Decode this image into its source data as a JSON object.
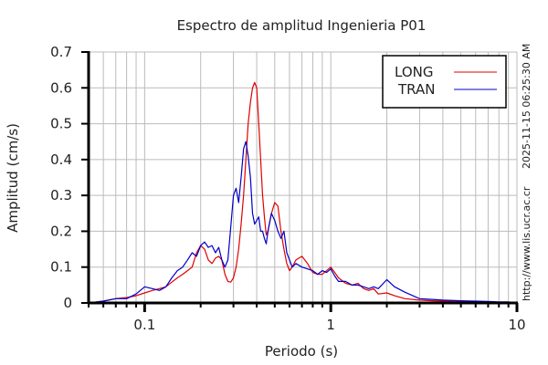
{
  "chart_data": {
    "type": "line",
    "title": "Espectro de amplitud Ingenieria P01",
    "xlabel": "Periodo (s)",
    "ylabel": "Amplitud (cm/s)",
    "xscale": "log",
    "xlim": [
      0.05,
      10
    ],
    "ylim": [
      0,
      0.7
    ],
    "xticks": [
      {
        "v": 0.1,
        "label": "0.1"
      },
      {
        "v": 1,
        "label": "1"
      },
      {
        "v": 10,
        "label": "10"
      }
    ],
    "yticks": [
      {
        "v": 0,
        "label": "0"
      },
      {
        "v": 0.1,
        "label": "0.1"
      },
      {
        "v": 0.2,
        "label": "0.2"
      },
      {
        "v": 0.3,
        "label": "0.3"
      },
      {
        "v": 0.4,
        "label": "0.4"
      },
      {
        "v": 0.5,
        "label": "0.5"
      },
      {
        "v": 0.6,
        "label": "0.6"
      },
      {
        "v": 0.7,
        "label": "0.7"
      }
    ],
    "grid": true,
    "legend_position": "upper right",
    "series": [
      {
        "name": "LONG",
        "color": "#e00000",
        "points": [
          [
            0.05,
            0.0
          ],
          [
            0.06,
            0.005
          ],
          [
            0.07,
            0.012
          ],
          [
            0.08,
            0.015
          ],
          [
            0.09,
            0.02
          ],
          [
            0.1,
            0.028
          ],
          [
            0.11,
            0.035
          ],
          [
            0.12,
            0.04
          ],
          [
            0.13,
            0.045
          ],
          [
            0.14,
            0.058
          ],
          [
            0.15,
            0.07
          ],
          [
            0.16,
            0.08
          ],
          [
            0.17,
            0.09
          ],
          [
            0.18,
            0.1
          ],
          [
            0.19,
            0.14
          ],
          [
            0.2,
            0.16
          ],
          [
            0.21,
            0.15
          ],
          [
            0.22,
            0.12
          ],
          [
            0.23,
            0.11
          ],
          [
            0.24,
            0.125
          ],
          [
            0.25,
            0.13
          ],
          [
            0.26,
            0.12
          ],
          [
            0.27,
            0.08
          ],
          [
            0.28,
            0.06
          ],
          [
            0.29,
            0.058
          ],
          [
            0.3,
            0.07
          ],
          [
            0.31,
            0.1
          ],
          [
            0.32,
            0.15
          ],
          [
            0.33,
            0.22
          ],
          [
            0.34,
            0.3
          ],
          [
            0.35,
            0.4
          ],
          [
            0.36,
            0.5
          ],
          [
            0.37,
            0.56
          ],
          [
            0.38,
            0.6
          ],
          [
            0.39,
            0.615
          ],
          [
            0.4,
            0.6
          ],
          [
            0.41,
            0.5
          ],
          [
            0.42,
            0.4
          ],
          [
            0.43,
            0.3
          ],
          [
            0.44,
            0.24
          ],
          [
            0.45,
            0.19
          ],
          [
            0.46,
            0.2
          ],
          [
            0.48,
            0.25
          ],
          [
            0.5,
            0.28
          ],
          [
            0.52,
            0.27
          ],
          [
            0.54,
            0.2
          ],
          [
            0.56,
            0.15
          ],
          [
            0.58,
            0.11
          ],
          [
            0.6,
            0.09
          ],
          [
            0.62,
            0.1
          ],
          [
            0.65,
            0.12
          ],
          [
            0.7,
            0.13
          ],
          [
            0.75,
            0.11
          ],
          [
            0.8,
            0.085
          ],
          [
            0.85,
            0.08
          ],
          [
            0.9,
            0.08
          ],
          [
            0.95,
            0.09
          ],
          [
            1.0,
            0.1
          ],
          [
            1.05,
            0.085
          ],
          [
            1.1,
            0.07
          ],
          [
            1.2,
            0.055
          ],
          [
            1.3,
            0.05
          ],
          [
            1.4,
            0.055
          ],
          [
            1.5,
            0.04
          ],
          [
            1.6,
            0.035
          ],
          [
            1.7,
            0.04
          ],
          [
            1.8,
            0.025
          ],
          [
            2.0,
            0.028
          ],
          [
            2.2,
            0.02
          ],
          [
            2.5,
            0.012
          ],
          [
            3.0,
            0.008
          ],
          [
            3.5,
            0.006
          ],
          [
            4.0,
            0.005
          ],
          [
            5.0,
            0.004
          ],
          [
            6.0,
            0.003
          ],
          [
            7.0,
            0.003
          ],
          [
            8.0,
            0.002
          ],
          [
            9.0,
            0.002
          ],
          [
            10.0,
            0.0
          ]
        ]
      },
      {
        "name": "TRAN",
        "color": "#0000c8",
        "points": [
          [
            0.05,
            0.0
          ],
          [
            0.06,
            0.005
          ],
          [
            0.07,
            0.012
          ],
          [
            0.08,
            0.012
          ],
          [
            0.09,
            0.025
          ],
          [
            0.1,
            0.045
          ],
          [
            0.11,
            0.04
          ],
          [
            0.12,
            0.035
          ],
          [
            0.13,
            0.045
          ],
          [
            0.14,
            0.07
          ],
          [
            0.15,
            0.09
          ],
          [
            0.16,
            0.1
          ],
          [
            0.17,
            0.12
          ],
          [
            0.18,
            0.14
          ],
          [
            0.19,
            0.13
          ],
          [
            0.2,
            0.16
          ],
          [
            0.21,
            0.17
          ],
          [
            0.22,
            0.155
          ],
          [
            0.23,
            0.16
          ],
          [
            0.24,
            0.14
          ],
          [
            0.25,
            0.155
          ],
          [
            0.26,
            0.12
          ],
          [
            0.27,
            0.1
          ],
          [
            0.28,
            0.12
          ],
          [
            0.29,
            0.21
          ],
          [
            0.3,
            0.3
          ],
          [
            0.31,
            0.32
          ],
          [
            0.32,
            0.28
          ],
          [
            0.33,
            0.35
          ],
          [
            0.34,
            0.43
          ],
          [
            0.35,
            0.45
          ],
          [
            0.36,
            0.41
          ],
          [
            0.37,
            0.35
          ],
          [
            0.38,
            0.25
          ],
          [
            0.39,
            0.22
          ],
          [
            0.4,
            0.23
          ],
          [
            0.41,
            0.24
          ],
          [
            0.42,
            0.2
          ],
          [
            0.43,
            0.2
          ],
          [
            0.44,
            0.18
          ],
          [
            0.45,
            0.165
          ],
          [
            0.46,
            0.2
          ],
          [
            0.48,
            0.25
          ],
          [
            0.5,
            0.23
          ],
          [
            0.52,
            0.2
          ],
          [
            0.54,
            0.18
          ],
          [
            0.56,
            0.2
          ],
          [
            0.58,
            0.14
          ],
          [
            0.6,
            0.12
          ],
          [
            0.62,
            0.1
          ],
          [
            0.65,
            0.11
          ],
          [
            0.7,
            0.1
          ],
          [
            0.75,
            0.095
          ],
          [
            0.8,
            0.09
          ],
          [
            0.85,
            0.08
          ],
          [
            0.9,
            0.09
          ],
          [
            0.95,
            0.085
          ],
          [
            1.0,
            0.095
          ],
          [
            1.05,
            0.075
          ],
          [
            1.1,
            0.06
          ],
          [
            1.2,
            0.06
          ],
          [
            1.3,
            0.05
          ],
          [
            1.4,
            0.05
          ],
          [
            1.5,
            0.045
          ],
          [
            1.6,
            0.04
          ],
          [
            1.7,
            0.045
          ],
          [
            1.8,
            0.04
          ],
          [
            2.0,
            0.065
          ],
          [
            2.2,
            0.045
          ],
          [
            2.5,
            0.03
          ],
          [
            3.0,
            0.012
          ],
          [
            3.5,
            0.01
          ],
          [
            4.0,
            0.008
          ],
          [
            5.0,
            0.006
          ],
          [
            6.0,
            0.005
          ],
          [
            7.0,
            0.004
          ],
          [
            8.0,
            0.003
          ],
          [
            9.0,
            0.003
          ],
          [
            10.0,
            0.0
          ]
        ]
      }
    ]
  },
  "side_text": {
    "timestamp": "2025-11-15 06:25:30 AM",
    "url": "http://www.lis.ucr.ac.cr"
  }
}
